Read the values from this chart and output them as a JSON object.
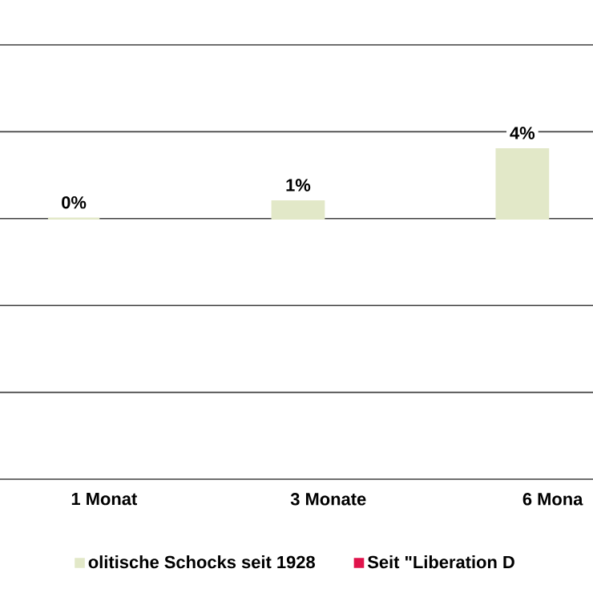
{
  "chart_data": {
    "type": "bar",
    "categories": [
      "1 Monat",
      "3 Monate",
      "6 Mona"
    ],
    "series": [
      {
        "name": "olitische Schocks seit 1928",
        "color": "#e2e8c8",
        "values": [
          0,
          1,
          4
        ],
        "value_labels": [
          "0%",
          "1%",
          "4%"
        ]
      },
      {
        "name": "Seit \"Liberation D",
        "color": "#e0144c",
        "values": [
          null,
          null,
          null
        ]
      }
    ],
    "ylim": [
      -15,
      10
    ],
    "yticks": [
      {
        "value": -15,
        "label": null
      },
      {
        "value": -10,
        "label": null
      },
      {
        "value": -5,
        "label": null
      },
      {
        "value": 0,
        "label": null
      },
      {
        "value": 5,
        "label": null
      },
      {
        "value": 10,
        "label": null
      }
    ],
    "grid": "y",
    "legend": "bottom",
    "tick_labels": "x"
  }
}
